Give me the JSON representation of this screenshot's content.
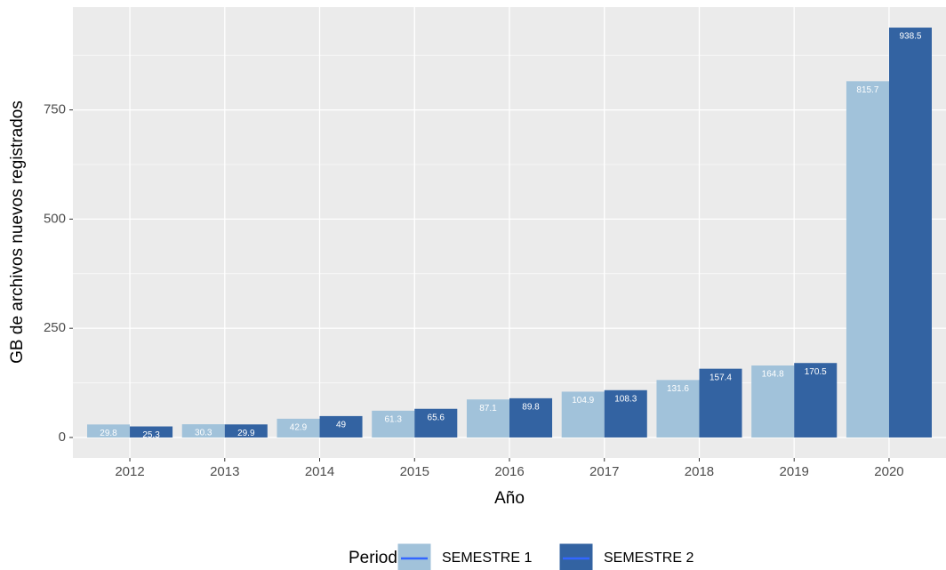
{
  "chart_data": {
    "type": "bar",
    "x_label": "Año",
    "y_label": "GB de archivos nuevos registrados",
    "categories": [
      "2012",
      "2013",
      "2014",
      "2015",
      "2016",
      "2017",
      "2018",
      "2019",
      "2020"
    ],
    "series": [
      {
        "name": "SEMESTRE 1",
        "color": "#a1c2da",
        "values": [
          29.8,
          30.3,
          42.9,
          61.3,
          87.1,
          104.9,
          131.6,
          164.8,
          815.7
        ]
      },
      {
        "name": "SEMESTRE 2",
        "color": "#3363a2",
        "values": [
          25.3,
          29.9,
          49,
          65.6,
          89.8,
          108.3,
          157.4,
          170.5,
          938.5
        ]
      }
    ],
    "legend_title": "Periodo",
    "legend_position": "bottom",
    "ylim": [
      -46.9,
      985.4
    ],
    "yticks": [
      0,
      250,
      500,
      750
    ],
    "yminor": [
      125,
      375,
      625,
      875
    ],
    "grid": true
  }
}
